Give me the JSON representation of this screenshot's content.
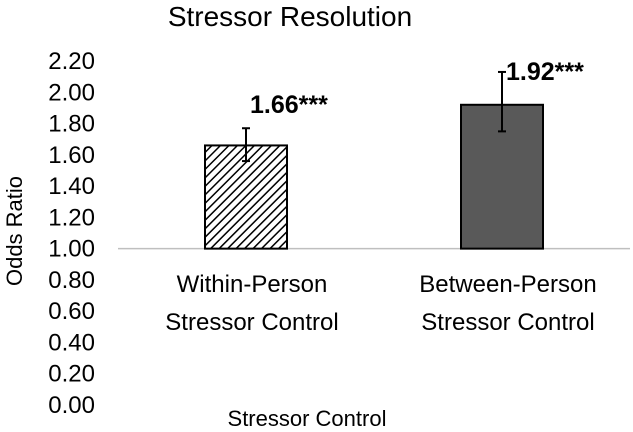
{
  "chart_data": {
    "type": "bar",
    "title": "Stressor Resolution",
    "xlabel": "Stressor Control",
    "ylabel": "Odds Ratio",
    "ylim": [
      0,
      2.2
    ],
    "baseline": 1.0,
    "yticks": [
      "0.00",
      "0.20",
      "0.40",
      "0.60",
      "0.80",
      "1.00",
      "1.20",
      "1.40",
      "1.60",
      "1.80",
      "2.00",
      "2.20"
    ],
    "grid": false,
    "legend": "none",
    "categories": [
      [
        "Within-Person",
        "Stressor Control"
      ],
      [
        "Between-Person",
        "Stressor Control"
      ]
    ],
    "values": [
      1.66,
      1.92
    ],
    "error_low": [
      1.56,
      1.75
    ],
    "error_high": [
      1.77,
      2.13
    ],
    "data_labels": [
      "1.66***",
      "1.92***"
    ],
    "bar_styles": [
      "hatched",
      "solid"
    ],
    "colors": {
      "solid_bar": "#595959",
      "hatch": "#000000",
      "axis": "#bfbfbf"
    }
  }
}
